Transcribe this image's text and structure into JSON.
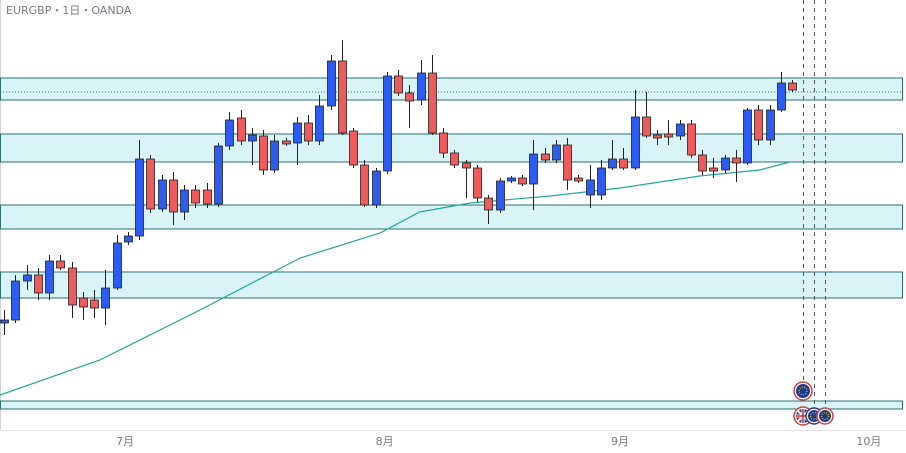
{
  "chart_data": {
    "type": "candlestick",
    "title": "EURGBP・1日・OANDA",
    "up_color": "#2e5bf0",
    "down_color": "#ef5a5a",
    "open": [
      130,
      133,
      172,
      178,
      160,
      192,
      185,
      155,
      153,
      145,
      165,
      211,
      217,
      294,
      244,
      273,
      241,
      263,
      263,
      249,
      307,
      335,
      312,
      317,
      283,
      312,
      310,
      330,
      312,
      347,
      392,
      322,
      288,
      248,
      282,
      377,
      360,
      353,
      380,
      320,
      300,
      290,
      285,
      255,
      243,
      272,
      275,
      269,
      299,
      293,
      308,
      275,
      258,
      258,
      285,
      294,
      285,
      336,
      318,
      319,
      317,
      329,
      298,
      285,
      283,
      295,
      290,
      343,
      313,
      343,
      370
    ],
    "high": [
      143,
      178,
      188,
      185,
      198,
      198,
      191,
      161,
      163,
      183,
      218,
      221,
      313,
      298,
      278,
      281,
      268,
      268,
      270,
      310,
      341,
      343,
      325,
      323,
      318,
      315,
      336,
      338,
      358,
      398,
      413,
      325,
      293,
      285,
      381,
      383,
      368,
      393,
      398,
      325,
      303,
      293,
      288,
      258,
      275,
      277,
      278,
      313,
      305,
      313,
      315,
      278,
      288,
      293,
      313,
      305,
      363,
      361,
      323,
      333,
      333,
      333,
      303,
      295,
      298,
      303,
      345,
      348,
      348,
      381,
      373
    ],
    "low": [
      118,
      130,
      163,
      153,
      153,
      183,
      135,
      133,
      135,
      128,
      163,
      208,
      213,
      240,
      241,
      228,
      233,
      245,
      245,
      246,
      303,
      308,
      288,
      278,
      280,
      307,
      288,
      308,
      308,
      343,
      318,
      285,
      246,
      245,
      279,
      357,
      325,
      348,
      318,
      295,
      285,
      255,
      251,
      229,
      240,
      270,
      267,
      243,
      290,
      290,
      263,
      270,
      245,
      253,
      283,
      283,
      283,
      315,
      308,
      308,
      313,
      295,
      278,
      275,
      280,
      271,
      288,
      308,
      308,
      341,
      361
    ],
    "close": [
      133,
      172,
      178,
      160,
      192,
      185,
      148,
      146,
      145,
      165,
      210,
      217,
      294,
      244,
      273,
      241,
      263,
      250,
      249,
      307,
      333,
      312,
      318,
      283,
      312,
      309,
      330,
      312,
      347,
      392,
      320,
      288,
      248,
      282,
      377,
      360,
      352,
      380,
      320,
      300,
      288,
      285,
      255,
      243,
      272,
      275,
      269,
      299,
      293,
      308,
      273,
      272,
      273,
      285,
      294,
      285,
      336,
      317,
      315,
      316,
      329,
      298,
      282,
      282,
      295,
      290,
      343,
      313,
      343,
      370,
      363
    ],
    "ma": {
      "name": "MA",
      "color": "#26a69a",
      "x": [
        -0.36,
        8.5,
        17.4,
        26.3,
        33.4,
        36.9,
        41.4,
        48.5,
        54.7,
        61.8,
        67.1,
        69.8
      ],
      "values": [
        58,
        93,
        143,
        195,
        220,
        241,
        250,
        257,
        265,
        277,
        283,
        291
      ]
    },
    "zones": [
      [
        353,
        375
      ],
      [
        291,
        319
      ],
      [
        224,
        248
      ],
      [
        155,
        181
      ],
      [
        44,
        52
      ]
    ],
    "dotted_level": 361,
    "xlim": [
      -0.36,
      80.1
    ],
    "ylim": [
      23,
      453
    ],
    "xticks": [
      {
        "value": 10.75,
        "label": "7月"
      },
      {
        "value": 33.8,
        "label": "8月"
      },
      {
        "value": 54.7,
        "label": "9月"
      },
      {
        "value": 76.8,
        "label": "10月"
      }
    ]
  }
}
